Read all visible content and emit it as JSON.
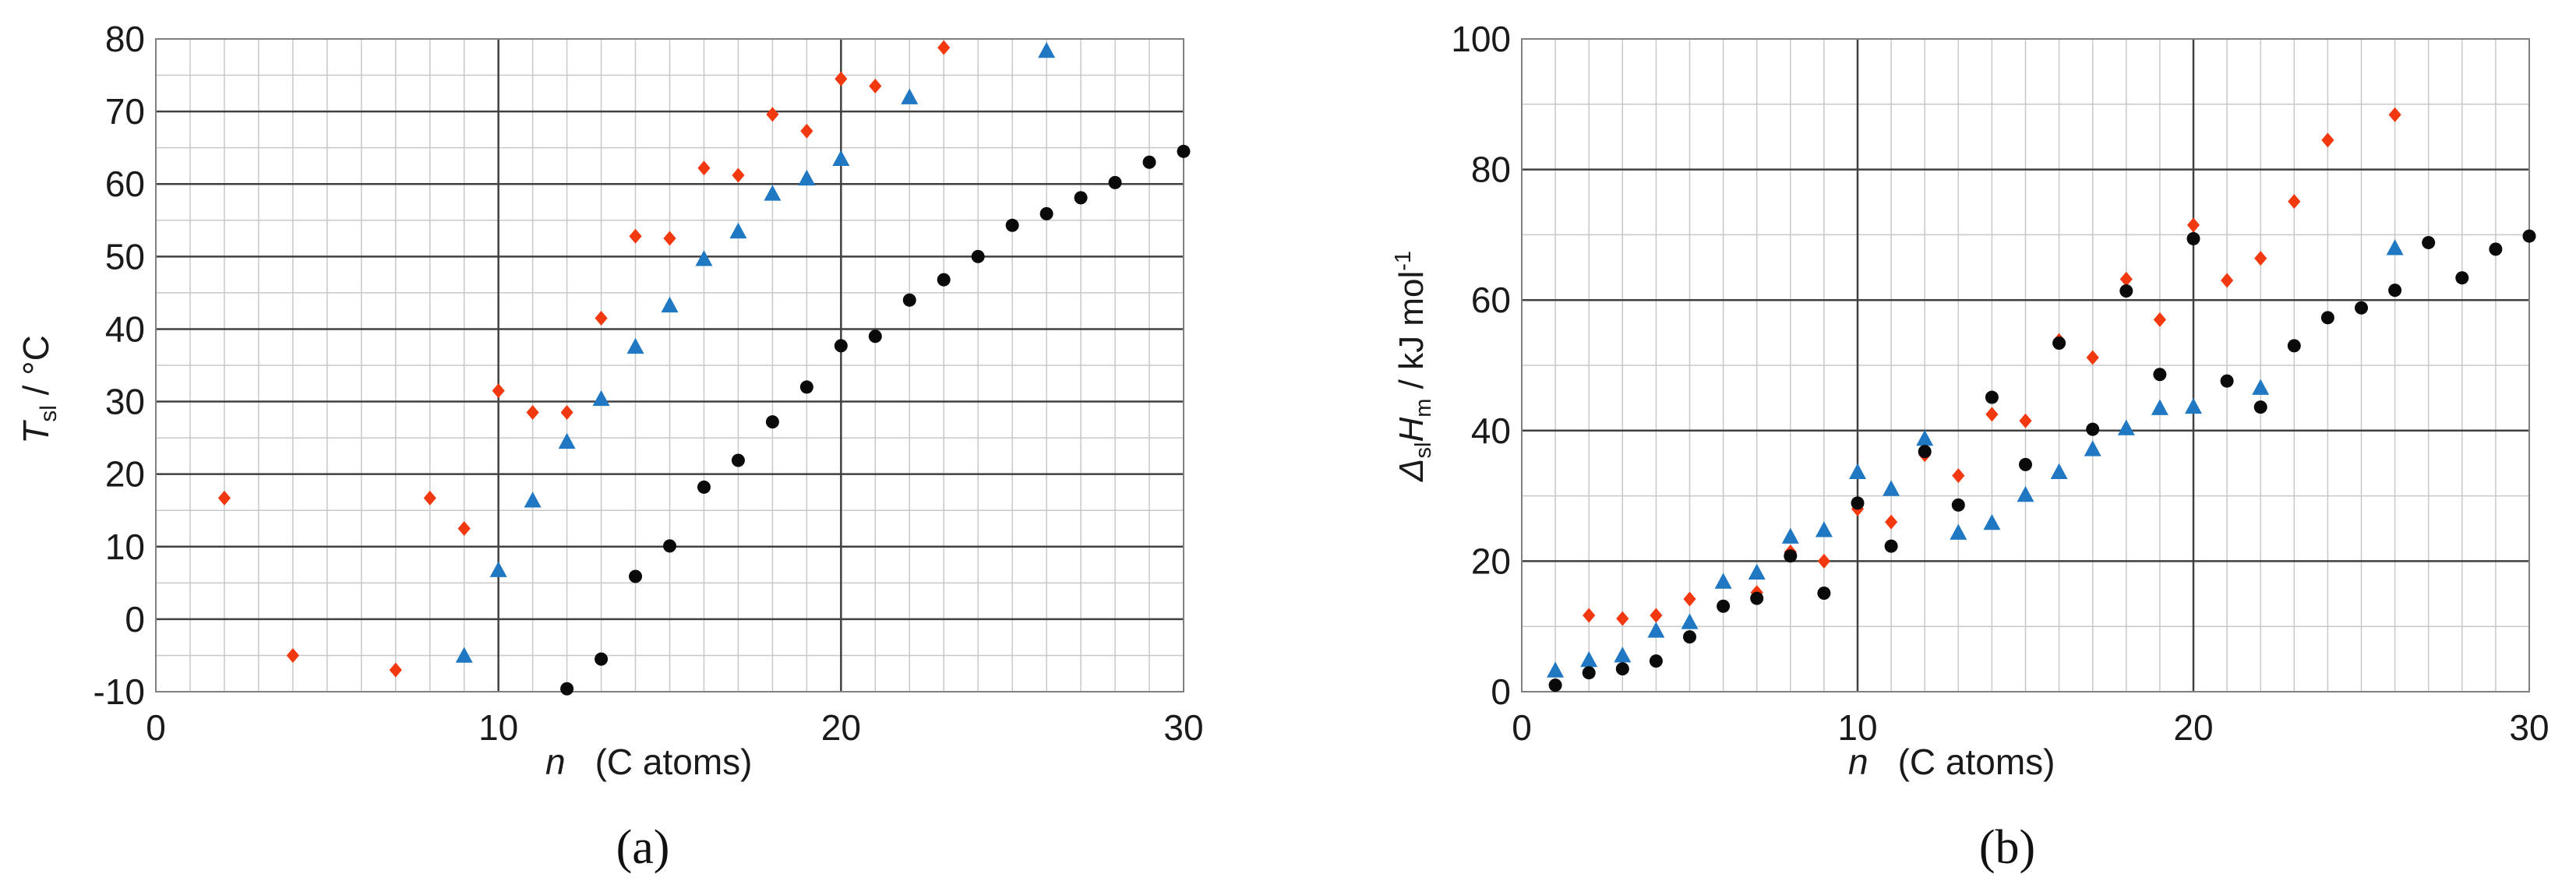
{
  "colors": {
    "red": "#f2380f",
    "blue": "#1f78c1",
    "black": "#0a0a0a",
    "grid_minor": "#c8c8c8",
    "grid_major": "#404040",
    "frame": "#808080"
  },
  "chart_data": [
    {
      "type": "scatter",
      "panel_label": "(a)",
      "ylabel_main": "T",
      "ylabel_sub": "sl",
      "ylabel_rest": " / °C",
      "xlabel_var": "n",
      "xlabel_rest": "(C atoms)",
      "xlim": [
        0,
        30
      ],
      "ylim": [
        -10,
        80
      ],
      "xticks": [
        0,
        10,
        20,
        30
      ],
      "yticks": [
        -10,
        0,
        10,
        20,
        30,
        40,
        50,
        60,
        70,
        80
      ],
      "grid": true,
      "series": [
        {
          "color_key": "red",
          "marker": "diamond",
          "points": [
            [
              2,
              16.7
            ],
            [
              4,
              -5
            ],
            [
              7,
              -7
            ],
            [
              8,
              16.7
            ],
            [
              9,
              12.5
            ],
            [
              10,
              31.5
            ],
            [
              11,
              28.5
            ],
            [
              12,
              28.5
            ],
            [
              13,
              41.5
            ],
            [
              14,
              52.8
            ],
            [
              15,
              52.5
            ],
            [
              16,
              62.2
            ],
            [
              17,
              61.2
            ],
            [
              18,
              69.6
            ],
            [
              19,
              67.3
            ],
            [
              20,
              74.5
            ],
            [
              21,
              73.5
            ],
            [
              23,
              78.8
            ]
          ]
        },
        {
          "color_key": "blue",
          "marker": "triangle",
          "points": [
            [
              9,
              -5
            ],
            [
              10,
              6.8
            ],
            [
              11,
              16.4
            ],
            [
              12,
              24.5
            ],
            [
              13,
              30.4
            ],
            [
              14,
              37.6
            ],
            [
              15,
              43.3
            ],
            [
              16,
              49.7
            ],
            [
              17,
              53.5
            ],
            [
              18,
              58.7
            ],
            [
              19,
              60.8
            ],
            [
              20,
              63.5
            ],
            [
              22,
              72
            ],
            [
              26,
              78.4
            ]
          ]
        },
        {
          "color_key": "black",
          "marker": "circle",
          "points": [
            [
              12,
              -9.6
            ],
            [
              13,
              -5.5
            ],
            [
              14,
              5.9
            ],
            [
              15,
              10.1
            ],
            [
              16,
              18.2
            ],
            [
              17,
              21.9
            ],
            [
              18,
              27.2
            ],
            [
              19,
              32
            ],
            [
              20,
              37.7
            ],
            [
              21,
              39
            ],
            [
              22,
              44
            ],
            [
              23,
              46.8
            ],
            [
              24,
              50
            ],
            [
              25,
              54.3
            ],
            [
              26,
              55.9
            ],
            [
              27,
              58.1
            ],
            [
              28,
              60.2
            ],
            [
              29,
              63
            ],
            [
              30,
              64.5
            ]
          ]
        }
      ]
    },
    {
      "type": "scatter",
      "panel_label": "(b)",
      "ylabel_delta": "Δ",
      "ylabel_sub1": "sl",
      "ylabel_main": "H",
      "ylabel_sub2": "m",
      "ylabel_rest": " / kJ mol",
      "ylabel_sup": "-1",
      "xlabel_var": "n",
      "xlabel_rest": "(C atoms)",
      "xlim": [
        0,
        30
      ],
      "ylim": [
        0,
        100
      ],
      "xticks": [
        0,
        10,
        20,
        30
      ],
      "yticks": [
        0,
        20,
        40,
        60,
        80,
        100
      ],
      "grid": true,
      "series": [
        {
          "color_key": "red",
          "marker": "diamond",
          "points": [
            [
              2,
              11.7
            ],
            [
              3,
              11.2
            ],
            [
              4,
              11.7
            ],
            [
              5,
              14.2
            ],
            [
              7,
              15.2
            ],
            [
              8,
              21.4
            ],
            [
              9,
              20
            ],
            [
              10,
              28
            ],
            [
              11,
              26
            ],
            [
              12,
              36.3
            ],
            [
              13,
              33.1
            ],
            [
              14,
              42.5
            ],
            [
              15,
              41.5
            ],
            [
              16,
              53.8
            ],
            [
              17,
              51.2
            ],
            [
              18,
              63.2
            ],
            [
              19,
              57
            ],
            [
              20,
              71.5
            ],
            [
              21,
              63
            ],
            [
              22,
              66.4
            ],
            [
              23,
              75.1
            ],
            [
              24,
              84.5
            ],
            [
              26,
              88.4
            ]
          ]
        },
        {
          "color_key": "blue",
          "marker": "triangle",
          "points": [
            [
              1,
              3.3
            ],
            [
              2,
              4.9
            ],
            [
              3,
              5.6
            ],
            [
              4,
              9.4
            ],
            [
              5,
              10.7
            ],
            [
              6,
              16.9
            ],
            [
              7,
              18.3
            ],
            [
              8,
              23.8
            ],
            [
              9,
              24.8
            ],
            [
              10,
              33.7
            ],
            [
              11,
              31.1
            ],
            [
              12,
              38.8
            ],
            [
              13,
              24.4
            ],
            [
              14,
              25.9
            ],
            [
              15,
              30.2
            ],
            [
              16,
              33.7
            ],
            [
              17,
              37.2
            ],
            [
              18,
              40.4
            ],
            [
              19,
              43.5
            ],
            [
              20,
              43.7
            ],
            [
              22,
              46.6
            ],
            [
              26,
              68
            ]
          ]
        },
        {
          "color_key": "black",
          "marker": "circle",
          "points": [
            [
              1,
              1
            ],
            [
              2,
              2.9
            ],
            [
              3,
              3.5
            ],
            [
              4,
              4.7
            ],
            [
              5,
              8.4
            ],
            [
              6,
              13.1
            ],
            [
              7,
              14.3
            ],
            [
              8,
              20.8
            ],
            [
              9,
              15.1
            ],
            [
              10,
              28.9
            ],
            [
              11,
              22.3
            ],
            [
              12,
              36.8
            ],
            [
              13,
              28.6
            ],
            [
              14,
              45.1
            ],
            [
              15,
              34.8
            ],
            [
              16,
              53.4
            ],
            [
              17,
              40.2
            ],
            [
              18,
              61.4
            ],
            [
              19,
              48.6
            ],
            [
              20,
              69.4
            ],
            [
              21,
              47.6
            ],
            [
              22,
              43.6
            ],
            [
              23,
              53
            ],
            [
              24,
              57.3
            ],
            [
              25,
              58.8
            ],
            [
              26,
              61.5
            ],
            [
              27,
              68.8
            ],
            [
              28,
              63.4
            ],
            [
              29,
              67.8
            ],
            [
              30,
              69.8
            ]
          ]
        }
      ]
    }
  ]
}
